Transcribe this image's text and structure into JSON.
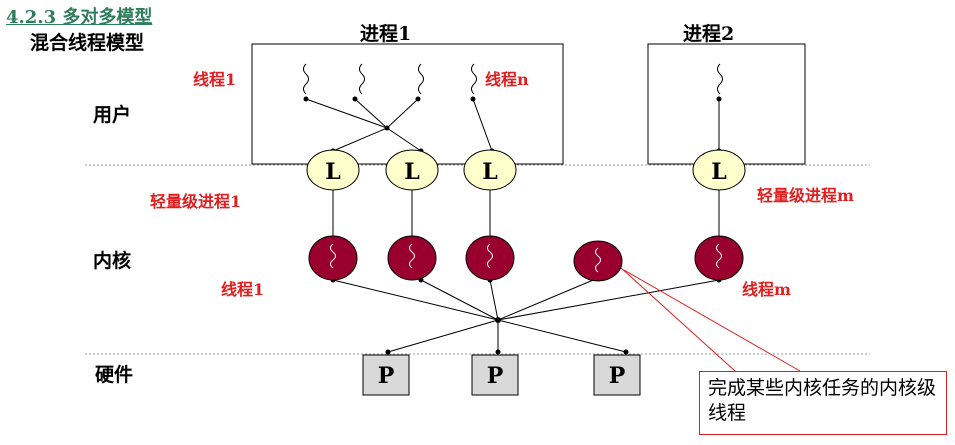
{
  "heading": "4.2.3 多对多模型",
  "subheading": "混合线程模型",
  "diagram": {
    "process1_title": "进程1",
    "process2_title": "进程2",
    "layer_user": "用户",
    "layer_kernel": "内核",
    "layer_hardware": "硬件",
    "user_thread1_label": "线程1",
    "user_threadn_label": "线程n",
    "lwp1_label": "轻量级进程1",
    "lwpm_label": "轻量级进程m",
    "kernel_thread1_label": "线程1",
    "kernel_threadm_label": "线程m",
    "lwp_letter": "L",
    "processor_letter": "P",
    "note": "完成某些内核任务的内核级线程",
    "colors": {
      "heading": "#2e7d5b",
      "red_label": "#e02020",
      "lwp_fill": "#ffffcc",
      "kernel_thread_fill": "#99002e",
      "processor_fill": "#d9d9d9"
    }
  }
}
